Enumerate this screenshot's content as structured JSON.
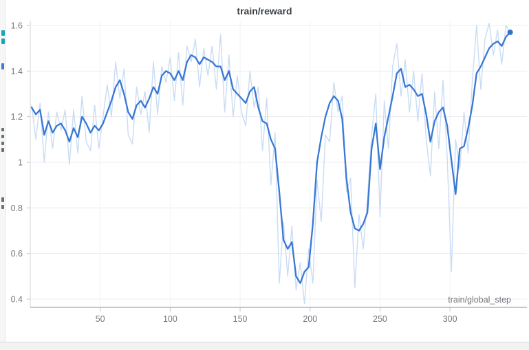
{
  "chart_data": {
    "type": "line",
    "title": "train/reward",
    "xlabel": "train/global_step",
    "ylabel": "",
    "x_ticks": [
      50,
      100,
      150,
      200,
      250,
      300
    ],
    "y_ticks": [
      0.4,
      0.6,
      0.8,
      1,
      1.2,
      1.4,
      1.6
    ],
    "y_tick_labels": [
      "0.4",
      "0.6",
      "0.8",
      "1",
      "1.2",
      "1.4",
      "1.6"
    ],
    "xlim": [
      0,
      355
    ],
    "ylim": [
      0.36,
      1.62
    ],
    "grid": true,
    "legend_position": "none",
    "colors": {
      "raw_line": "#c9dcf4",
      "smoothed_line": "#3878d4",
      "end_dot": "#2e74cf",
      "gridline": "#ececf0",
      "vertical_gridline": "#f2f2f5",
      "bottom_spine": "#b4b4bc",
      "left_spine": "#d6d6dc",
      "tick_mark": "#c3c3cb"
    },
    "x": [
      1,
      4,
      7,
      10,
      13,
      16,
      19,
      22,
      25,
      28,
      31,
      34,
      37,
      40,
      43,
      46,
      49,
      52,
      55,
      58,
      61,
      64,
      67,
      70,
      73,
      76,
      79,
      82,
      85,
      88,
      91,
      94,
      97,
      100,
      103,
      106,
      109,
      112,
      115,
      118,
      121,
      124,
      127,
      130,
      133,
      136,
      139,
      142,
      145,
      148,
      151,
      154,
      157,
      160,
      163,
      166,
      169,
      172,
      175,
      178,
      181,
      184,
      187,
      190,
      193,
      196,
      199,
      202,
      205,
      208,
      211,
      214,
      217,
      220,
      223,
      226,
      229,
      232,
      235,
      238,
      241,
      244,
      247,
      250,
      253,
      256,
      259,
      262,
      265,
      268,
      271,
      274,
      277,
      280,
      283,
      286,
      289,
      292,
      295,
      298,
      301,
      304,
      307,
      310,
      313,
      316,
      319,
      322,
      325,
      328,
      331,
      334,
      337,
      340,
      343
    ],
    "series": [
      {
        "name": "train/reward (raw)",
        "role": "raw",
        "values": [
          1.25,
          1.1,
          1.26,
          1.0,
          1.22,
          1.06,
          1.22,
          1.14,
          1.23,
          0.99,
          1.23,
          1.04,
          1.29,
          1.09,
          1.05,
          1.25,
          1.06,
          1.2,
          1.34,
          1.2,
          1.44,
          1.28,
          1.41,
          1.12,
          1.08,
          1.33,
          1.21,
          1.31,
          1.13,
          1.44,
          1.21,
          1.42,
          1.35,
          1.46,
          1.27,
          1.48,
          1.25,
          1.51,
          1.44,
          1.54,
          1.33,
          1.5,
          1.38,
          1.51,
          1.32,
          1.56,
          1.22,
          1.47,
          1.2,
          1.38,
          1.22,
          1.16,
          1.4,
          1.24,
          1.33,
          1.05,
          1.28,
          0.9,
          1.13,
          0.47,
          0.74,
          0.5,
          0.72,
          0.44,
          0.56,
          0.38,
          0.62,
          0.47,
          0.92,
          0.74,
          1.12,
          1.09,
          1.35,
          1.22,
          1.29,
          0.87,
          0.93,
          0.45,
          0.77,
          0.62,
          0.84,
          1.12,
          1.3,
          0.76,
          1.27,
          1.06,
          1.42,
          1.52,
          1.29,
          1.45,
          1.22,
          1.4,
          1.18,
          1.39,
          1.1,
          0.94,
          1.31,
          1.06,
          1.36,
          1.02,
          0.52,
          1.1,
          0.97,
          1.22,
          1.04,
          1.36,
          1.6,
          1.32,
          1.54,
          1.61,
          1.47,
          1.58,
          1.43,
          1.6,
          1.57
        ]
      },
      {
        "name": "train/reward (smoothed)",
        "role": "smoothed",
        "values": [
          1.24,
          1.21,
          1.23,
          1.12,
          1.18,
          1.13,
          1.16,
          1.17,
          1.14,
          1.09,
          1.15,
          1.11,
          1.2,
          1.17,
          1.13,
          1.16,
          1.14,
          1.17,
          1.22,
          1.27,
          1.33,
          1.36,
          1.3,
          1.22,
          1.19,
          1.25,
          1.27,
          1.24,
          1.28,
          1.33,
          1.3,
          1.38,
          1.4,
          1.39,
          1.36,
          1.4,
          1.36,
          1.44,
          1.47,
          1.46,
          1.43,
          1.46,
          1.45,
          1.44,
          1.42,
          1.42,
          1.36,
          1.4,
          1.32,
          1.3,
          1.28,
          1.26,
          1.31,
          1.33,
          1.24,
          1.18,
          1.17,
          1.1,
          1.06,
          0.87,
          0.66,
          0.62,
          0.65,
          0.5,
          0.47,
          0.52,
          0.54,
          0.73,
          1.0,
          1.11,
          1.2,
          1.26,
          1.29,
          1.27,
          1.19,
          0.93,
          0.78,
          0.71,
          0.7,
          0.73,
          0.78,
          1.06,
          1.17,
          0.97,
          1.11,
          1.2,
          1.29,
          1.39,
          1.41,
          1.33,
          1.34,
          1.32,
          1.29,
          1.3,
          1.21,
          1.09,
          1.18,
          1.22,
          1.24,
          1.16,
          1.01,
          0.86,
          1.06,
          1.07,
          1.15,
          1.25,
          1.39,
          1.42,
          1.46,
          1.5,
          1.52,
          1.53,
          1.51,
          1.55,
          1.57
        ]
      }
    ],
    "end_marker": {
      "x": 343,
      "y": 1.57
    }
  }
}
